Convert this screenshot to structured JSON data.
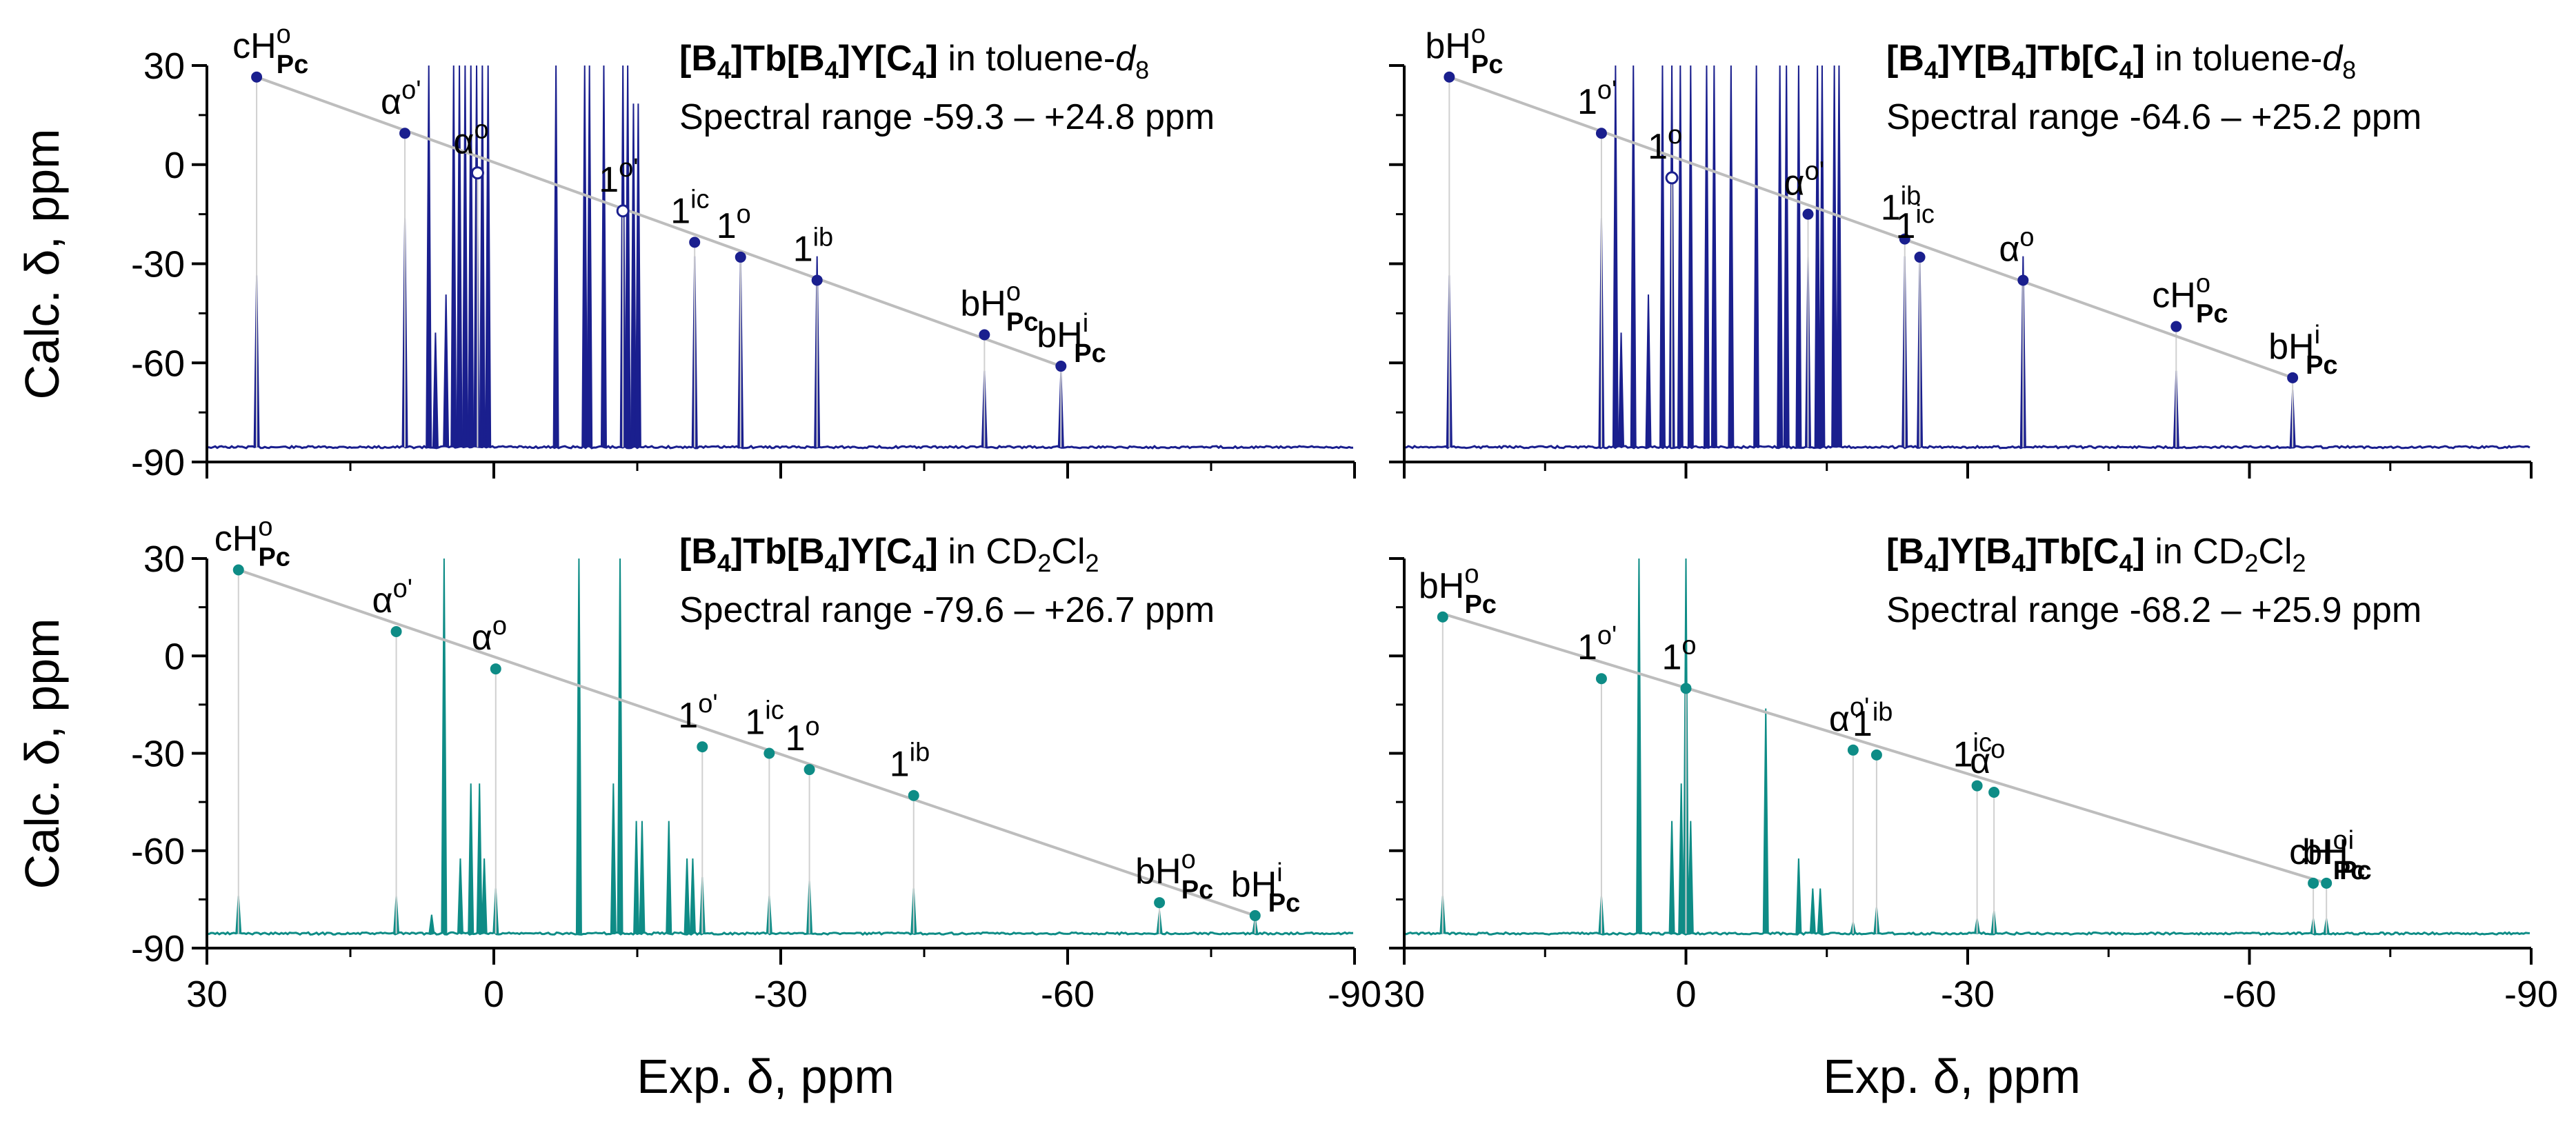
{
  "colors": {
    "navy": "#1a1f8e",
    "teal": "#0e8c86",
    "fit_line": "#bdbdbd",
    "drop_line": "#d0d0d0",
    "axis": "#000000"
  },
  "axes": {
    "ylabel": "Calc. δ, ppm",
    "xlabel": "Exp. δ, ppm"
  },
  "chart_data": [
    {
      "type": "scatter",
      "id": "top-left",
      "color": "navy",
      "title_bold": "[B4]Tb[B4]Y[C4]",
      "title_rest": " in toluene-d8",
      "title_parts": [
        {
          "t": "[B",
          "b": true
        },
        {
          "t": "4",
          "b": true,
          "sub": true
        },
        {
          "t": "]Tb[B",
          "b": true
        },
        {
          "t": "4",
          "b": true,
          "sub": true
        },
        {
          "t": "]Y[C",
          "b": true
        },
        {
          "t": "4",
          "b": true,
          "sub": true
        },
        {
          "t": "]",
          "b": true
        },
        {
          "t": " in toluene-"
        },
        {
          "t": "d",
          "i": true
        },
        {
          "t": "8",
          "sub": true
        }
      ],
      "subtitle": "Spectral range -59.3 – +24.8 ppm",
      "xlim": [
        30,
        -90
      ],
      "ylim": [
        -90,
        30
      ],
      "xticks": [
        "30",
        "0",
        "-30",
        "-60",
        "-90"
      ],
      "yticks": [
        "30",
        "0",
        "-30",
        "-60",
        "-90"
      ],
      "fit_line": [
        [
          24.8,
          26.5
        ],
        [
          -59.3,
          -61.0
        ]
      ],
      "points": [
        {
          "x": 24.8,
          "y": 26.5,
          "label": "cHPc,o"
        },
        {
          "x": 9.3,
          "y": 9.5,
          "label": "alpha,o'"
        },
        {
          "x": 1.7,
          "y": -2.5,
          "label": "alpha,o",
          "hollow": true
        },
        {
          "x": -13.5,
          "y": -14.0,
          "label": "1,o'",
          "hollow": true
        },
        {
          "x": -21.0,
          "y": -23.5,
          "label": "1,ic"
        },
        {
          "x": -25.8,
          "y": -28.0,
          "label": "1,o"
        },
        {
          "x": -33.8,
          "y": -35.0,
          "label": "1,ib"
        },
        {
          "x": -51.3,
          "y": -51.5,
          "label": "bHPc,o"
        },
        {
          "x": -59.3,
          "y": -61.0,
          "label": "bHPc,i"
        }
      ],
      "spectrum_peaks": [
        {
          "x": 24.8,
          "h": 0.45
        },
        {
          "x": 9.3,
          "h": 0.6
        },
        {
          "x": 6.8,
          "h": 2.0
        },
        {
          "x": 6.1,
          "h": 0.3
        },
        {
          "x": 5.0,
          "h": 0.4
        },
        {
          "x": 4.2,
          "h": 2.0
        },
        {
          "x": 3.6,
          "h": 2.0
        },
        {
          "x": 3.0,
          "h": 2.0
        },
        {
          "x": 2.4,
          "h": 2.0
        },
        {
          "x": 1.8,
          "h": 2.0
        },
        {
          "x": 1.2,
          "h": 2.0
        },
        {
          "x": 0.6,
          "h": 2.0
        },
        {
          "x": -6.5,
          "h": 2.0
        },
        {
          "x": -9.5,
          "h": 2.0
        },
        {
          "x": -10.0,
          "h": 2.0
        },
        {
          "x": -11.5,
          "h": 1.1
        },
        {
          "x": -13.5,
          "h": 1.2
        },
        {
          "x": -14.0,
          "h": 1.2
        },
        {
          "x": -14.6,
          "h": 0.9
        },
        {
          "x": -15.1,
          "h": 0.9
        },
        {
          "x": -21.0,
          "h": 0.5
        },
        {
          "x": -25.8,
          "h": 0.5
        },
        {
          "x": -33.8,
          "h": 0.5
        },
        {
          "x": -51.3,
          "h": 0.2
        },
        {
          "x": -59.3,
          "h": 0.2
        }
      ]
    },
    {
      "type": "scatter",
      "id": "top-right",
      "color": "navy",
      "title_parts": [
        {
          "t": "[B",
          "b": true
        },
        {
          "t": "4",
          "b": true,
          "sub": true
        },
        {
          "t": "]Y[B",
          "b": true
        },
        {
          "t": "4",
          "b": true,
          "sub": true
        },
        {
          "t": "]Tb[C",
          "b": true
        },
        {
          "t": "4",
          "b": true,
          "sub": true
        },
        {
          "t": "]",
          "b": true
        },
        {
          "t": " in toluene-"
        },
        {
          "t": "d",
          "i": true
        },
        {
          "t": "8",
          "sub": true
        }
      ],
      "subtitle": "Spectral range -64.6 – +25.2 ppm",
      "xlim": [
        30,
        -90
      ],
      "ylim": [
        -90,
        30
      ],
      "xticks": [
        "30",
        "0",
        "-30",
        "-60",
        "-90"
      ],
      "yticks": [
        "30",
        "0",
        "-30",
        "-60",
        "-90"
      ],
      "fit_line": [
        [
          25.2,
          26.5
        ],
        [
          -64.6,
          -64.5
        ]
      ],
      "points": [
        {
          "x": 25.2,
          "y": 26.5,
          "label": "bHPc,o"
        },
        {
          "x": 9.0,
          "y": 9.5,
          "label": "1,o'"
        },
        {
          "x": 1.5,
          "y": -4.0,
          "label": "1,o",
          "hollow": true
        },
        {
          "x": -13.0,
          "y": -15.0,
          "label": "alpha,o'"
        },
        {
          "x": -23.3,
          "y": -22.5,
          "label": "1,ib"
        },
        {
          "x": -24.9,
          "y": -28.0,
          "label": "1,ic"
        },
        {
          "x": -35.9,
          "y": -35.0,
          "label": "alpha,o"
        },
        {
          "x": -52.2,
          "y": -49.0,
          "label": "cHPc,o"
        },
        {
          "x": -64.6,
          "y": -64.5,
          "label": "bHPc,i"
        }
      ],
      "spectrum_peaks": [
        {
          "x": 25.2,
          "h": 0.45
        },
        {
          "x": 9.0,
          "h": 0.6
        },
        {
          "x": 7.5,
          "h": 2.0
        },
        {
          "x": 6.9,
          "h": 0.3
        },
        {
          "x": 5.6,
          "h": 2.0
        },
        {
          "x": 4.0,
          "h": 0.4
        },
        {
          "x": 2.5,
          "h": 2.0
        },
        {
          "x": 1.5,
          "h": 2.0
        },
        {
          "x": 0.6,
          "h": 2.0
        },
        {
          "x": -0.5,
          "h": 2.0
        },
        {
          "x": -2.2,
          "h": 2.0
        },
        {
          "x": -3.0,
          "h": 2.0
        },
        {
          "x": -4.8,
          "h": 2.0
        },
        {
          "x": -7.5,
          "h": 2.0
        },
        {
          "x": -10.0,
          "h": 2.0
        },
        {
          "x": -10.7,
          "h": 2.0
        },
        {
          "x": -12.0,
          "h": 2.0
        },
        {
          "x": -13.0,
          "h": 0.5
        },
        {
          "x": -14.0,
          "h": 1.5
        },
        {
          "x": -14.5,
          "h": 1.5
        },
        {
          "x": -15.8,
          "h": 1.0
        },
        {
          "x": -16.3,
          "h": 1.0
        },
        {
          "x": -23.3,
          "h": 0.5
        },
        {
          "x": -24.9,
          "h": 0.5
        },
        {
          "x": -35.9,
          "h": 0.5
        },
        {
          "x": -52.2,
          "h": 0.2
        },
        {
          "x": -64.6,
          "h": 0.15
        }
      ]
    },
    {
      "type": "scatter",
      "id": "bottom-left",
      "color": "teal",
      "title_parts": [
        {
          "t": "[B",
          "b": true
        },
        {
          "t": "4",
          "b": true,
          "sub": true
        },
        {
          "t": "]Tb[B",
          "b": true
        },
        {
          "t": "4",
          "b": true,
          "sub": true
        },
        {
          "t": "]Y[C",
          "b": true
        },
        {
          "t": "4",
          "b": true,
          "sub": true
        },
        {
          "t": "]",
          "b": true
        },
        {
          "t": " in CD"
        },
        {
          "t": "2",
          "sub": true
        },
        {
          "t": "Cl"
        },
        {
          "t": "2",
          "sub": true
        }
      ],
      "subtitle": "Spectral range -79.6 – +26.7 ppm",
      "xlim": [
        30,
        -90
      ],
      "ylim": [
        -90,
        30
      ],
      "xticks": [
        "30",
        "0",
        "-30",
        "-60",
        "-90"
      ],
      "yticks": [
        "30",
        "0",
        "-30",
        "-60",
        "-90"
      ],
      "fit_line": [
        [
          26.7,
          26.5
        ],
        [
          -79.6,
          -80.0
        ]
      ],
      "points": [
        {
          "x": 26.7,
          "y": 26.5,
          "label": "cHPc,o"
        },
        {
          "x": 10.2,
          "y": 7.5,
          "label": "alpha,o'"
        },
        {
          "x": -0.2,
          "y": -4.0,
          "label": "alpha,o"
        },
        {
          "x": -21.8,
          "y": -28.0,
          "label": "1,o'"
        },
        {
          "x": -28.8,
          "y": -30.0,
          "label": "1,ic"
        },
        {
          "x": -33.0,
          "y": -35.0,
          "label": "1,o"
        },
        {
          "x": -43.9,
          "y": -43.0,
          "label": "1,ib"
        },
        {
          "x": -69.6,
          "y": -76.0,
          "label": "bHPc,o"
        },
        {
          "x": -79.6,
          "y": -80.0,
          "label": "bHPc,i"
        }
      ],
      "spectrum_peaks": [
        {
          "x": 26.7,
          "h": 0.1
        },
        {
          "x": 10.2,
          "h": 0.1
        },
        {
          "x": 6.5,
          "h": 0.05
        },
        {
          "x": 5.2,
          "h": 2.0
        },
        {
          "x": 3.5,
          "h": 0.2
        },
        {
          "x": 2.4,
          "h": 0.4
        },
        {
          "x": 1.5,
          "h": 0.4
        },
        {
          "x": 1.0,
          "h": 0.2
        },
        {
          "x": -0.2,
          "h": 0.12
        },
        {
          "x": -8.9,
          "h": 2.0
        },
        {
          "x": -12.5,
          "h": 0.4
        },
        {
          "x": -13.2,
          "h": 2.0
        },
        {
          "x": -14.9,
          "h": 0.3
        },
        {
          "x": -15.5,
          "h": 0.3
        },
        {
          "x": -18.3,
          "h": 0.3
        },
        {
          "x": -20.2,
          "h": 0.2
        },
        {
          "x": -20.8,
          "h": 0.2
        },
        {
          "x": -21.8,
          "h": 0.15
        },
        {
          "x": -28.8,
          "h": 0.1
        },
        {
          "x": -33.0,
          "h": 0.14
        },
        {
          "x": -43.9,
          "h": 0.12
        },
        {
          "x": -69.6,
          "h": 0.06
        },
        {
          "x": -79.6,
          "h": 0.04
        }
      ]
    },
    {
      "type": "scatter",
      "id": "bottom-right",
      "color": "teal",
      "title_parts": [
        {
          "t": "[B",
          "b": true
        },
        {
          "t": "4",
          "b": true,
          "sub": true
        },
        {
          "t": "]Y[B",
          "b": true
        },
        {
          "t": "4",
          "b": true,
          "sub": true
        },
        {
          "t": "]Tb[C",
          "b": true
        },
        {
          "t": "4",
          "b": true,
          "sub": true
        },
        {
          "t": "]",
          "b": true
        },
        {
          "t": " in CD"
        },
        {
          "t": "2",
          "sub": true
        },
        {
          "t": "Cl"
        },
        {
          "t": "2",
          "sub": true
        }
      ],
      "subtitle": "Spectral range -68.2 – +25.9 ppm",
      "xlim": [
        30,
        -90
      ],
      "ylim": [
        -90,
        30
      ],
      "xticks": [
        "30",
        "0",
        "-30",
        "-60",
        "-90"
      ],
      "yticks": [
        "30",
        "0",
        "-30",
        "-60",
        "-90"
      ],
      "fit_line": [
        [
          25.9,
          13.0
        ],
        [
          -68.2,
          -70.0
        ]
      ],
      "points": [
        {
          "x": 25.9,
          "y": 12.0,
          "label": "bHPc,o"
        },
        {
          "x": 9.0,
          "y": -7.0,
          "label": "1,o'"
        },
        {
          "x": 0.0,
          "y": -10.0,
          "label": "1,o"
        },
        {
          "x": -17.8,
          "y": -29.0,
          "label": "alpha,o'"
        },
        {
          "x": -20.3,
          "y": -30.5,
          "label": "1,ib"
        },
        {
          "x": -31.0,
          "y": -40.0,
          "label": "1,ic"
        },
        {
          "x": -32.8,
          "y": -42.0,
          "label": "alpha,o"
        },
        {
          "x": -66.8,
          "y": -70.0,
          "label": "cHPc,o"
        },
        {
          "x": -68.2,
          "y": -70.0,
          "label": "bHPc,i"
        }
      ],
      "spectrum_peaks": [
        {
          "x": 25.9,
          "h": 0.1
        },
        {
          "x": 9.0,
          "h": 0.1
        },
        {
          "x": 5.0,
          "h": 2.0
        },
        {
          "x": 1.5,
          "h": 0.3
        },
        {
          "x": 0.5,
          "h": 0.4
        },
        {
          "x": 0.0,
          "h": 2.0
        },
        {
          "x": -0.5,
          "h": 0.3
        },
        {
          "x": -8.5,
          "h": 0.6
        },
        {
          "x": -12.0,
          "h": 0.2
        },
        {
          "x": -13.5,
          "h": 0.12
        },
        {
          "x": -14.3,
          "h": 0.12
        },
        {
          "x": -17.8,
          "h": 0.03
        },
        {
          "x": -20.3,
          "h": 0.07
        },
        {
          "x": -31.0,
          "h": 0.04
        },
        {
          "x": -32.8,
          "h": 0.06
        },
        {
          "x": -66.8,
          "h": 0.04
        },
        {
          "x": -68.2,
          "h": 0.04
        }
      ]
    }
  ]
}
